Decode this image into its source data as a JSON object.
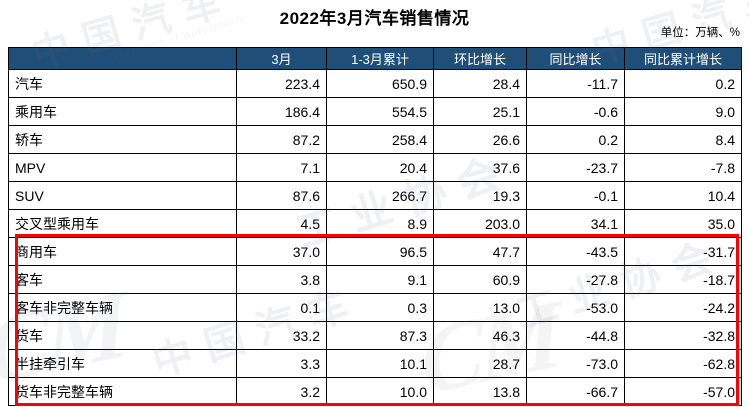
{
  "title": "2022年3月汽车销售情况",
  "unit_note": "单位：万辆、%",
  "colors": {
    "header_bg": "#1F4E79",
    "header_text": "#FFFFFF",
    "row_blue": "#BDD7EE",
    "row_gray": "#D9D9D9",
    "highlight_border": "#FF0000"
  },
  "table": {
    "columns": [
      "",
      "3月",
      "1-3月累计",
      "环比增长",
      "同比增长",
      "同比累计增长"
    ],
    "rows": [
      {
        "label": "汽车",
        "indent": 0,
        "style": "blue",
        "values": [
          "223.4",
          "650.9",
          "28.4",
          "-11.7",
          "0.2"
        ]
      },
      {
        "label": "乘用车",
        "indent": 1,
        "style": "gray",
        "values": [
          "186.4",
          "554.5",
          "25.1",
          "-0.6",
          "9.0"
        ]
      },
      {
        "label": "轿车",
        "indent": 2,
        "style": "white",
        "values": [
          "87.2",
          "258.4",
          "26.6",
          "0.2",
          "8.4"
        ]
      },
      {
        "label": "MPV",
        "indent": 2,
        "style": "white",
        "values": [
          "7.1",
          "20.4",
          "37.6",
          "-23.7",
          "-7.8"
        ]
      },
      {
        "label": "SUV",
        "indent": 2,
        "style": "white",
        "values": [
          "87.6",
          "266.7",
          "19.3",
          "-0.1",
          "10.4"
        ]
      },
      {
        "label": "交叉型乘用车",
        "indent": 2,
        "style": "white",
        "values": [
          "4.5",
          "8.9",
          "203.0",
          "34.1",
          "35.0"
        ]
      },
      {
        "label": "商用车",
        "indent": 1,
        "style": "gray",
        "values": [
          "37.0",
          "96.5",
          "47.7",
          "-43.5",
          "-31.7"
        ]
      },
      {
        "label": "客车",
        "indent": 2,
        "style": "white",
        "values": [
          "3.8",
          "9.1",
          "60.9",
          "-27.8",
          "-18.7"
        ]
      },
      {
        "label": "客车非完整车辆",
        "indent": 3,
        "style": "white",
        "values": [
          "0.1",
          "0.3",
          "13.0",
          "-53.0",
          "-24.2"
        ]
      },
      {
        "label": "货车",
        "indent": 2,
        "style": "white",
        "values": [
          "33.2",
          "87.3",
          "46.3",
          "-44.8",
          "-32.8"
        ]
      },
      {
        "label": "半挂牵引车",
        "indent": 3,
        "style": "white",
        "values": [
          "3.3",
          "10.1",
          "28.7",
          "-73.0",
          "-62.8"
        ]
      },
      {
        "label": "货车非完整车辆",
        "indent": 3,
        "style": "white",
        "values": [
          "3.2",
          "10.0",
          "13.8",
          "-66.7",
          "-57.0"
        ]
      }
    ],
    "highlighted_section": [
      "商用车",
      "客车",
      "客车非完整车辆",
      "货车",
      "半挂牵引车",
      "货车非完整车辆"
    ]
  },
  "watermarks": [
    {
      "text": "中国汽车"
    },
    {
      "text": "Association of Automobile"
    },
    {
      "text": "中国汽车"
    },
    {
      "text": "工业协会"
    },
    {
      "text": "中国汽车"
    },
    {
      "text": "工业协会"
    },
    {
      "text": "CM"
    },
    {
      "text": "CM"
    }
  ],
  "chart_data": {
    "type": "table",
    "title": "2022年3月汽车销售情况",
    "unit": "万辆、%",
    "columns": [
      "3月",
      "1-3月累计",
      "环比增长",
      "同比增长",
      "同比累计增长"
    ],
    "rows": [
      {
        "category": "汽车",
        "values": [
          223.4,
          650.9,
          28.4,
          -11.7,
          0.2
        ]
      },
      {
        "category": "乘用车",
        "values": [
          186.4,
          554.5,
          25.1,
          -0.6,
          9.0
        ]
      },
      {
        "category": "轿车",
        "values": [
          87.2,
          258.4,
          26.6,
          0.2,
          8.4
        ]
      },
      {
        "category": "MPV",
        "values": [
          7.1,
          20.4,
          37.6,
          -23.7,
          -7.8
        ]
      },
      {
        "category": "SUV",
        "values": [
          87.6,
          266.7,
          19.3,
          -0.1,
          10.4
        ]
      },
      {
        "category": "交叉型乘用车",
        "values": [
          4.5,
          8.9,
          203.0,
          34.1,
          35.0
        ]
      },
      {
        "category": "商用车",
        "values": [
          37.0,
          96.5,
          47.7,
          -43.5,
          -31.7
        ]
      },
      {
        "category": "客车",
        "values": [
          3.8,
          9.1,
          60.9,
          -27.8,
          -18.7
        ]
      },
      {
        "category": "客车非完整车辆",
        "values": [
          0.1,
          0.3,
          13.0,
          -53.0,
          -24.2
        ]
      },
      {
        "category": "货车",
        "values": [
          33.2,
          87.3,
          46.3,
          -44.8,
          -32.8
        ]
      },
      {
        "category": "半挂牵引车",
        "values": [
          3.3,
          10.1,
          28.7,
          -73.0,
          -62.8
        ]
      },
      {
        "category": "货车非完整车辆",
        "values": [
          3.2,
          10.0,
          13.8,
          -66.7,
          -57.0
        ]
      }
    ]
  }
}
